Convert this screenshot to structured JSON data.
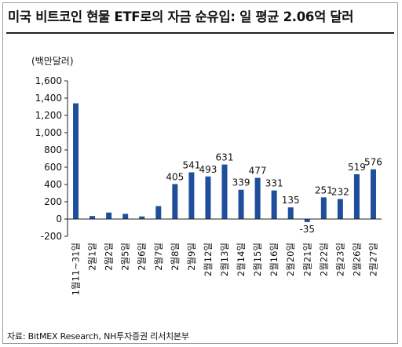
{
  "chart_data": {
    "type": "bar",
    "title": "미국 비트코인 현물 ETF로의 자금 순유입: 일 평균 2.06억 달러",
    "unit": "(백만달러)",
    "source": "자료: BitMEX Research, NH투자증권 리서치본부",
    "ylim": [
      -200,
      1600
    ],
    "yticks": [
      -200,
      0,
      200,
      400,
      600,
      800,
      1000,
      1200,
      1400,
      1600
    ],
    "ytick_labels": [
      "-200",
      "0",
      "200",
      "400",
      "600",
      "800",
      "1,000",
      "1,200",
      "1,400",
      "1,600"
    ],
    "categories": [
      "1월11~31일",
      "2월1일",
      "2월2일",
      "2월5일",
      "2월6일",
      "2월7일",
      "2월8일",
      "2월9일",
      "2월12일",
      "2월13일",
      "2월14일",
      "2월15일",
      "2월16일",
      "2월20일",
      "2월21일",
      "2월22일",
      "2월23일",
      "2월26일",
      "2월27일"
    ],
    "values": [
      1340,
      35,
      75,
      60,
      30,
      150,
      405,
      541,
      493,
      631,
      339,
      477,
      331,
      135,
      -35,
      251,
      232,
      519,
      576
    ],
    "data_labels": [
      "",
      "",
      "",
      "",
      "",
      "",
      "405",
      "541",
      "493",
      "631",
      "339",
      "477",
      "331",
      "135",
      "-35",
      "251",
      "232",
      "519",
      "576"
    ],
    "grid": false,
    "legend": "none",
    "bar_color": "#1f4e9c"
  }
}
